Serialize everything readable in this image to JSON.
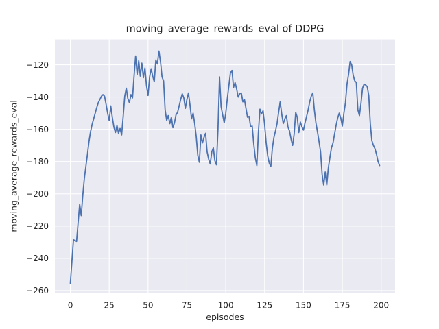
{
  "figure": {
    "title": "moving_average_rewards_eval of DDPG",
    "xlabel": "episodes",
    "ylabel": "moving_average_rewards_eval"
  },
  "chart_data": {
    "type": "line",
    "title": "moving_average_rewards_eval of DDPG",
    "xlabel": "episodes",
    "ylabel": "moving_average_rewards_eval",
    "x_ticks": [
      0,
      25,
      50,
      75,
      100,
      125,
      150,
      175,
      200
    ],
    "x_tick_labels": [
      "0",
      "25",
      "50",
      "75",
      "100",
      "125",
      "150",
      "175",
      "200"
    ],
    "y_ticks": [
      -120,
      -140,
      -160,
      -180,
      -200,
      -220,
      -240,
      -260
    ],
    "y_tick_labels": [
      "−120",
      "−140",
      "−160",
      "−180",
      "−200",
      "−220",
      "−240",
      "−260"
    ],
    "xlim": [
      -9.95,
      208.95
    ],
    "ylim": [
      -261.4,
      -104.3
    ],
    "grid": true,
    "legend": false,
    "series": [
      {
        "name": "moving_average_rewards_eval",
        "x_start": 0,
        "x_step": 1,
        "values": [
          -255.5,
          -242,
          -228.5,
          -229,
          -229.5,
          -218,
          -206.5,
          -213.5,
          -201,
          -190.5,
          -183,
          -175.5,
          -167.5,
          -161.5,
          -157,
          -153.5,
          -150,
          -146.5,
          -143.5,
          -141.5,
          -139.5,
          -138.5,
          -139.5,
          -144.5,
          -150,
          -154.5,
          -145.5,
          -152.5,
          -158.5,
          -162,
          -157.5,
          -162.5,
          -159.5,
          -163.5,
          -152,
          -139.5,
          -134.5,
          -141,
          -143.5,
          -138.5,
          -140.5,
          -127,
          -114.5,
          -126,
          -117.5,
          -127,
          -119,
          -128,
          -122,
          -133,
          -139,
          -127.5,
          -122.5,
          -127,
          -130.5,
          -117,
          -119.5,
          -111.5,
          -118,
          -127.5,
          -130,
          -148,
          -154.5,
          -151.5,
          -156.5,
          -152.5,
          -159,
          -156,
          -151,
          -149.5,
          -145.5,
          -141.5,
          -138,
          -140.5,
          -147,
          -141.5,
          -137.5,
          -145,
          -153.5,
          -150,
          -156.5,
          -164.5,
          -176,
          -180.5,
          -163.5,
          -168.5,
          -165,
          -162.5,
          -174,
          -178.5,
          -181.5,
          -174,
          -171.5,
          -179.5,
          -182,
          -160,
          -127.5,
          -146,
          -151,
          -156,
          -150,
          -141,
          -133,
          -125,
          -123.5,
          -134,
          -131,
          -135,
          -140,
          -138,
          -137.5,
          -143,
          -141.5,
          -147,
          -152.5,
          -152,
          -158.5,
          -158,
          -169,
          -177.5,
          -182.5,
          -162,
          -147.5,
          -150.5,
          -148.5,
          -157,
          -168.5,
          -176.5,
          -181,
          -183,
          -171.5,
          -165,
          -161,
          -156.5,
          -149.5,
          -143,
          -150.5,
          -156.5,
          -153.5,
          -151.5,
          -158.5,
          -161,
          -166,
          -170,
          -163,
          -149.5,
          -152.5,
          -162,
          -155.5,
          -158.5,
          -160.5,
          -156,
          -152,
          -148,
          -143,
          -139.5,
          -137.5,
          -148,
          -156,
          -161.5,
          -167.5,
          -174,
          -188,
          -194.5,
          -186.5,
          -194.5,
          -184,
          -177.5,
          -171.5,
          -168.5,
          -163,
          -157.5,
          -153,
          -150,
          -153,
          -158,
          -150,
          -143.5,
          -132,
          -126,
          -118,
          -120,
          -126.5,
          -130,
          -131,
          -148,
          -151.5,
          -144,
          -134.5,
          -132,
          -132.5,
          -133.5,
          -139,
          -156.5,
          -167,
          -170,
          -172,
          -175.5,
          -180,
          -182.5
        ]
      }
    ],
    "style": {
      "line_color": "#4C72B0",
      "axes_background": "#EAEAF2",
      "grid_color": "#FFFFFF",
      "figure_background": "#FFFFFF",
      "text_color": "#262626"
    }
  }
}
